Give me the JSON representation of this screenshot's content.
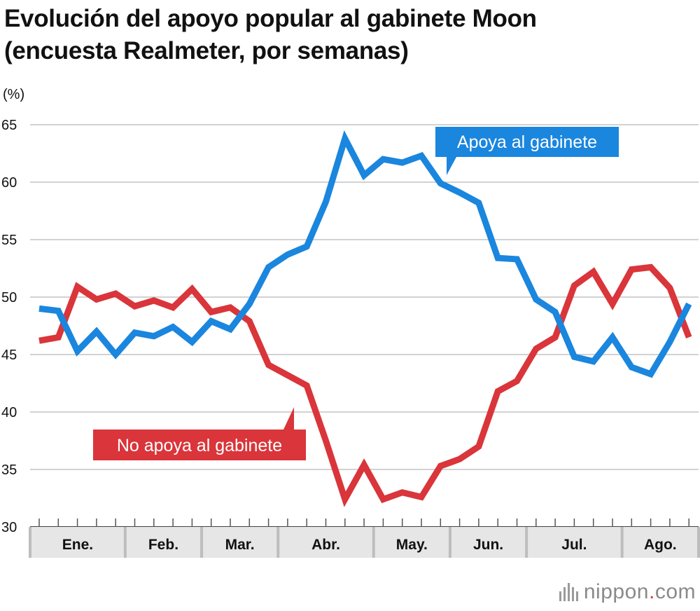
{
  "title": {
    "line1": "Evolución del apoyo popular al gabinete Moon",
    "line2": "(encuesta Realmeter, por semanas)"
  },
  "chart_data": {
    "type": "line",
    "unit_label": "(%)",
    "ylim": [
      30,
      65
    ],
    "yticks": [
      "65",
      "60",
      "55",
      "50",
      "45",
      "40",
      "35",
      "30"
    ],
    "months": [
      "Ene.",
      "Feb.",
      "Mar.",
      "Abr.",
      "May.",
      "Jun.",
      "Jul.",
      "Ago."
    ],
    "weeks_per_month": [
      5,
      4,
      4,
      5,
      4,
      4,
      5,
      4
    ],
    "grid": true,
    "series": [
      {
        "name": "Apoya al gabinete",
        "color": "#1a86de",
        "values": [
          49.0,
          48.8,
          45.3,
          47.0,
          45.0,
          46.9,
          46.6,
          47.4,
          46.1,
          47.9,
          47.2,
          49.4,
          52.6,
          53.7,
          54.4,
          58.3,
          63.8,
          60.6,
          62.0,
          61.7,
          62.3,
          59.9,
          59.1,
          58.2,
          53.4,
          53.3,
          49.8,
          48.7,
          44.8,
          44.4,
          46.5,
          43.9,
          43.3,
          46.1,
          49.4
        ]
      },
      {
        "name": "No apoya al gabinete",
        "color": "#d9353a",
        "values": [
          46.2,
          46.5,
          50.9,
          49.8,
          50.3,
          49.2,
          49.7,
          49.1,
          50.7,
          48.7,
          49.1,
          47.9,
          44.1,
          43.2,
          42.3,
          37.5,
          32.4,
          35.4,
          32.4,
          33.0,
          32.6,
          35.3,
          35.9,
          37.0,
          41.8,
          42.7,
          45.5,
          46.5,
          51.0,
          52.2,
          49.4,
          52.4,
          52.6,
          50.8,
          46.5
        ]
      }
    ]
  },
  "callouts": {
    "support": "Apoya al gabinete",
    "oppose": "No apoya al gabinete"
  },
  "brand": {
    "name": "nippon",
    "dot": ".",
    "suffix": "com"
  }
}
